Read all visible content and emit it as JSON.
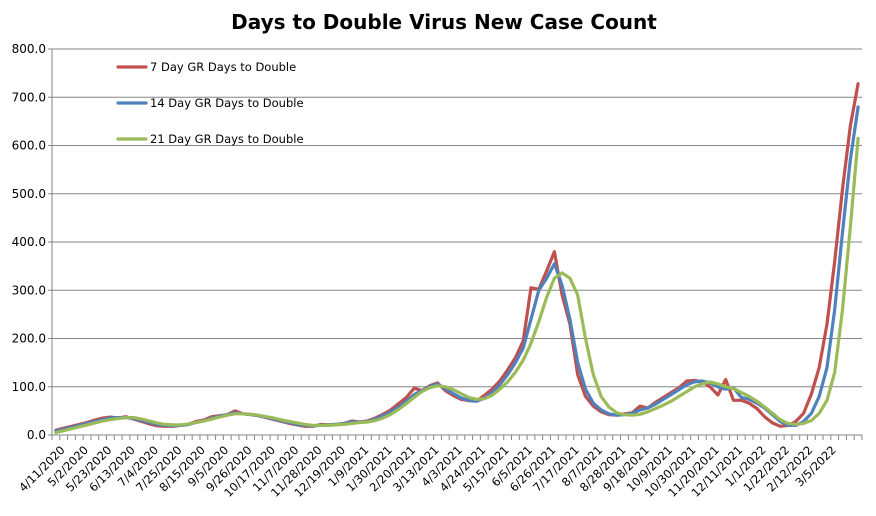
{
  "chart_data": {
    "type": "line",
    "title": "Days to Double Virus New Case Count",
    "xlabel": "",
    "ylabel": "",
    "ylim": [
      0,
      800
    ],
    "y_ticks": [
      "0.0",
      "100.0",
      "200.0",
      "300.0",
      "400.0",
      "500.0",
      "600.0",
      "700.0",
      "800.0"
    ],
    "y_tick_values": [
      0,
      100,
      200,
      300,
      400,
      500,
      600,
      700,
      800
    ],
    "x_interval": "weekly",
    "label_every": 3,
    "tick_labels": [
      "4/11/2020",
      "5/2/2020",
      "5/23/2020",
      "6/13/2020",
      "7/4/2020",
      "7/25/2020",
      "8/15/2020",
      "9/5/2020",
      "9/26/2020",
      "10/17/2020",
      "11/7/2020",
      "11/28/2020",
      "12/19/2020",
      "1/9/2021",
      "1/30/2021",
      "2/20/2021",
      "3/13/2021",
      "4/3/2021",
      "4/24/2021",
      "5/15/2021",
      "6/5/2021",
      "6/26/2021",
      "7/17/2021",
      "8/7/2021",
      "8/28/2021",
      "9/18/2021",
      "10/9/2021",
      "10/30/2021",
      "11/20/2021",
      "12/11/2021",
      "1/1/2022",
      "1/22/2022",
      "2/12/2022",
      "3/5/2022"
    ],
    "grid": "horizontal",
    "legend_placement": "top-left",
    "series": [
      {
        "name": "7 Day GR Days to Double",
        "color": "#c0504d",
        "values": [
          10,
          14,
          18,
          22,
          26,
          31,
          35,
          37,
          35,
          38,
          33,
          28,
          23,
          19,
          18,
          18,
          20,
          22,
          28,
          31,
          38,
          40,
          42,
          50,
          44,
          43,
          40,
          36,
          32,
          28,
          24,
          21,
          18,
          18,
          22,
          21,
          22,
          24,
          29,
          27,
          29,
          35,
          43,
          52,
          65,
          78,
          97,
          92,
          102,
          108,
          92,
          82,
          74,
          71,
          70,
          82,
          95,
          112,
          135,
          160,
          195,
          305,
          302,
          340,
          380,
          290,
          230,
          125,
          80,
          60,
          48,
          42,
          41,
          44,
          46,
          60,
          56,
          68,
          78,
          88,
          98,
          112,
          113,
          110,
          100,
          83,
          115,
          72,
          72,
          66,
          55,
          38,
          25,
          18,
          20,
          28,
          45,
          85,
          140,
          230,
          360,
          510,
          640,
          728
        ]
      },
      {
        "name": "14 Day GR Days to Double",
        "color": "#4f81bd",
        "values": [
          8,
          12,
          16,
          20,
          24,
          28,
          32,
          35,
          36,
          36,
          34,
          30,
          26,
          22,
          20,
          19,
          20,
          22,
          26,
          30,
          35,
          39,
          42,
          46,
          44,
          42,
          40,
          37,
          33,
          29,
          26,
          22,
          20,
          19,
          20,
          21,
          22,
          24,
          27,
          27,
          28,
          33,
          40,
          48,
          58,
          70,
          84,
          92,
          100,
          106,
          96,
          86,
          77,
          72,
          70,
          76,
          88,
          104,
          125,
          150,
          180,
          240,
          300,
          325,
          355,
          310,
          240,
          150,
          95,
          66,
          52,
          44,
          41,
          42,
          45,
          52,
          56,
          64,
          74,
          84,
          94,
          104,
          110,
          112,
          108,
          100,
          95,
          98,
          78,
          74,
          66,
          56,
          42,
          28,
          20,
          20,
          28,
          45,
          80,
          140,
          260,
          420,
          570,
          680
        ]
      },
      {
        "name": "21 Day GR Days to Double",
        "color": "#9bbb59",
        "values": [
          5,
          9,
          13,
          17,
          21,
          25,
          29,
          32,
          34,
          36,
          36,
          33,
          29,
          25,
          22,
          21,
          21,
          23,
          26,
          29,
          33,
          37,
          41,
          44,
          44,
          43,
          41,
          38,
          35,
          31,
          28,
          25,
          22,
          20,
          20,
          20,
          21,
          22,
          24,
          26,
          27,
          30,
          35,
          43,
          53,
          65,
          78,
          90,
          98,
          102,
          100,
          94,
          86,
          78,
          74,
          75,
          82,
          95,
          110,
          130,
          155,
          190,
          235,
          285,
          325,
          336,
          325,
          290,
          200,
          125,
          80,
          58,
          46,
          42,
          41,
          43,
          48,
          55,
          62,
          70,
          80,
          90,
          100,
          106,
          110,
          106,
          100,
          96,
          88,
          80,
          70,
          58,
          45,
          32,
          24,
          22,
          24,
          30,
          45,
          72,
          130,
          260,
          430,
          615
        ]
      }
    ]
  }
}
